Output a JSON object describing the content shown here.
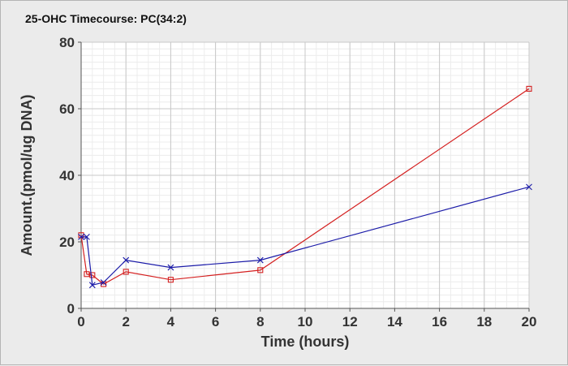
{
  "chart_data": {
    "type": "line",
    "title": "25-OHC Timecourse: PC(34:2)",
    "xlabel": "Time (hours)",
    "ylabel": "Amount.(pmol/ug DNA)",
    "xlim": [
      0,
      20
    ],
    "ylim": [
      0,
      80
    ],
    "xticks": [
      0,
      2,
      4,
      6,
      8,
      10,
      12,
      14,
      16,
      18,
      20
    ],
    "yticks": [
      0,
      20,
      40,
      60,
      80
    ],
    "grid": true,
    "series": [
      {
        "color": "#d42020",
        "marker": "square",
        "x": [
          0,
          0.25,
          0.5,
          1,
          2,
          4,
          8,
          20
        ],
        "y": [
          22,
          10.3,
          10,
          7.3,
          11,
          8.6,
          11.5,
          66
        ]
      },
      {
        "color": "#1a1aa8",
        "marker": "x",
        "x": [
          0,
          0.25,
          0.5,
          1,
          2,
          4,
          8,
          20
        ],
        "y": [
          21.5,
          21.5,
          7,
          7.8,
          14.5,
          12.3,
          14.5,
          36.5
        ]
      }
    ]
  }
}
